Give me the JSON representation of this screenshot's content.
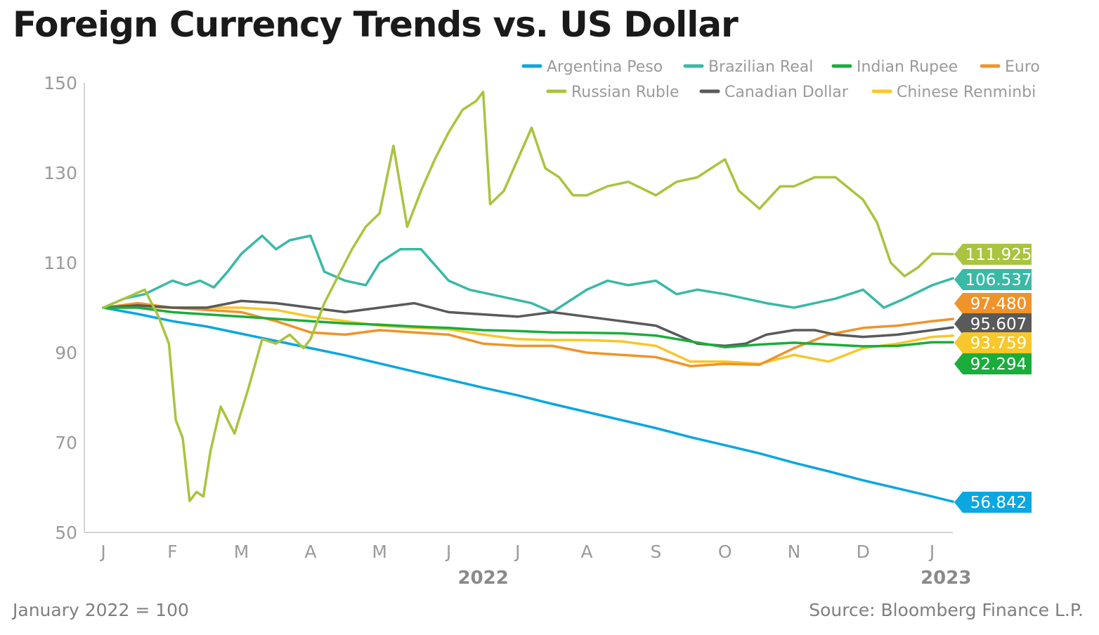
{
  "title": "Foreign Currency Trends vs. US Dollar",
  "footnote": "January 2022 = 100",
  "source": "Source: Bloomberg Finance L.P.",
  "chart_data": {
    "type": "line",
    "x_tick_labels": [
      "J",
      "F",
      "M",
      "A",
      "M",
      "J",
      "J",
      "A",
      "S",
      "O",
      "N",
      "D",
      "J"
    ],
    "x_year_labels": [
      "2022",
      "2023"
    ],
    "ylim": [
      50,
      150
    ],
    "y_ticks": [
      50,
      70,
      90,
      110,
      130,
      150
    ],
    "grid": false,
    "legend_position": "top-right",
    "x_unit": "months since January 2022",
    "series": [
      {
        "name": "Argentina Peso",
        "color": "#0aa7e0",
        "end_label": "56.842",
        "points": [
          [
            0,
            100
          ],
          [
            0.5,
            98.6
          ],
          [
            1,
            97
          ],
          [
            1.5,
            95.8
          ],
          [
            2,
            94.2
          ],
          [
            2.5,
            92.6
          ],
          [
            3,
            91
          ],
          [
            3.5,
            89.4
          ],
          [
            4,
            87.6
          ],
          [
            4.5,
            85.8
          ],
          [
            5,
            84
          ],
          [
            5.5,
            82.2
          ],
          [
            6,
            80.5
          ],
          [
            6.5,
            78.6
          ],
          [
            7,
            76.8
          ],
          [
            7.5,
            75
          ],
          [
            8,
            73.2
          ],
          [
            8.5,
            71.2
          ],
          [
            9,
            69.4
          ],
          [
            9.5,
            67.6
          ],
          [
            10,
            65.5
          ],
          [
            10.5,
            63.6
          ],
          [
            11,
            61.6
          ],
          [
            11.5,
            59.8
          ],
          [
            12,
            58
          ],
          [
            12.3,
            56.842
          ]
        ]
      },
      {
        "name": "Brazilian Real",
        "color": "#39b9a6",
        "end_label": "106.537",
        "points": [
          [
            0,
            100
          ],
          [
            0.3,
            102
          ],
          [
            0.6,
            103
          ],
          [
            0.8,
            104.5
          ],
          [
            1,
            106
          ],
          [
            1.2,
            105
          ],
          [
            1.4,
            106
          ],
          [
            1.6,
            104.5
          ],
          [
            1.8,
            108
          ],
          [
            2,
            112
          ],
          [
            2.3,
            116
          ],
          [
            2.5,
            113
          ],
          [
            2.7,
            115
          ],
          [
            3,
            116
          ],
          [
            3.2,
            108
          ],
          [
            3.5,
            106
          ],
          [
            3.8,
            105
          ],
          [
            4,
            110
          ],
          [
            4.3,
            113
          ],
          [
            4.6,
            113
          ],
          [
            5,
            106
          ],
          [
            5.3,
            104
          ],
          [
            5.6,
            103
          ],
          [
            5.9,
            102
          ],
          [
            6.2,
            101
          ],
          [
            6.5,
            99
          ],
          [
            7,
            104
          ],
          [
            7.3,
            106
          ],
          [
            7.6,
            105
          ],
          [
            8,
            106
          ],
          [
            8.3,
            103
          ],
          [
            8.6,
            104
          ],
          [
            9,
            103
          ],
          [
            9.3,
            102
          ],
          [
            9.6,
            101
          ],
          [
            10,
            100
          ],
          [
            10.3,
            101
          ],
          [
            10.6,
            102
          ],
          [
            11,
            104
          ],
          [
            11.3,
            100
          ],
          [
            11.6,
            102
          ],
          [
            12,
            105
          ],
          [
            12.3,
            106.537
          ]
        ]
      },
      {
        "name": "Indian Rupee",
        "color": "#1aad3c",
        "end_label": "92.294",
        "points": [
          [
            0,
            100
          ],
          [
            0.5,
            100
          ],
          [
            1,
            99
          ],
          [
            1.5,
            98.5
          ],
          [
            2,
            98
          ],
          [
            2.5,
            97.5
          ],
          [
            3,
            97
          ],
          [
            3.5,
            96.5
          ],
          [
            4,
            96.2
          ],
          [
            4.5,
            95.8
          ],
          [
            5,
            95.5
          ],
          [
            5.5,
            95
          ],
          [
            6,
            94.8
          ],
          [
            6.5,
            94.5
          ],
          [
            7,
            94.4
          ],
          [
            7.5,
            94.3
          ],
          [
            8,
            93.8
          ],
          [
            8.5,
            92.5
          ],
          [
            9,
            91.2
          ],
          [
            9.5,
            91.8
          ],
          [
            10,
            92.2
          ],
          [
            10.5,
            91.8
          ],
          [
            11,
            91.4
          ],
          [
            11.5,
            91.5
          ],
          [
            12,
            92.3
          ],
          [
            12.3,
            92.294
          ]
        ]
      },
      {
        "name": "Euro",
        "color": "#f0932a",
        "end_label": "97.480",
        "points": [
          [
            0,
            100
          ],
          [
            0.5,
            101
          ],
          [
            1,
            100
          ],
          [
            1.5,
            99.5
          ],
          [
            2,
            99
          ],
          [
            2.5,
            97
          ],
          [
            3,
            94.5
          ],
          [
            3.5,
            94
          ],
          [
            4,
            95
          ],
          [
            4.5,
            94.5
          ],
          [
            5,
            94
          ],
          [
            5.5,
            92
          ],
          [
            6,
            91.5
          ],
          [
            6.5,
            91.5
          ],
          [
            7,
            90
          ],
          [
            7.5,
            89.5
          ],
          [
            8,
            89
          ],
          [
            8.5,
            87
          ],
          [
            9,
            87.5
          ],
          [
            9.5,
            87.3
          ],
          [
            10,
            91
          ],
          [
            10.5,
            94
          ],
          [
            11,
            95.5
          ],
          [
            11.5,
            96
          ],
          [
            12,
            97
          ],
          [
            12.3,
            97.48
          ]
        ]
      },
      {
        "name": "Russian Ruble",
        "color": "#a9c43e",
        "end_label": "111.925",
        "points": [
          [
            0,
            100
          ],
          [
            0.3,
            102
          ],
          [
            0.6,
            104
          ],
          [
            0.8,
            98
          ],
          [
            0.95,
            92
          ],
          [
            1.05,
            75
          ],
          [
            1.15,
            71
          ],
          [
            1.25,
            57
          ],
          [
            1.35,
            59
          ],
          [
            1.45,
            58
          ],
          [
            1.55,
            68
          ],
          [
            1.7,
            78
          ],
          [
            1.9,
            72
          ],
          [
            2.1,
            82
          ],
          [
            2.3,
            93
          ],
          [
            2.5,
            92
          ],
          [
            2.7,
            94
          ],
          [
            2.9,
            91
          ],
          [
            3,
            93
          ],
          [
            3.2,
            101
          ],
          [
            3.4,
            107
          ],
          [
            3.6,
            113
          ],
          [
            3.8,
            118
          ],
          [
            4,
            121
          ],
          [
            4.2,
            136
          ],
          [
            4.4,
            118
          ],
          [
            4.6,
            126
          ],
          [
            4.8,
            133
          ],
          [
            5,
            139
          ],
          [
            5.2,
            144
          ],
          [
            5.4,
            146
          ],
          [
            5.5,
            148
          ],
          [
            5.6,
            123
          ],
          [
            5.8,
            126
          ],
          [
            6,
            133
          ],
          [
            6.2,
            140
          ],
          [
            6.4,
            131
          ],
          [
            6.6,
            129
          ],
          [
            6.8,
            125
          ],
          [
            7,
            125
          ],
          [
            7.3,
            127
          ],
          [
            7.6,
            128
          ],
          [
            8,
            125
          ],
          [
            8.3,
            128
          ],
          [
            8.6,
            129
          ],
          [
            9,
            133
          ],
          [
            9.2,
            126
          ],
          [
            9.5,
            122
          ],
          [
            9.8,
            127
          ],
          [
            10,
            127
          ],
          [
            10.3,
            129
          ],
          [
            10.6,
            129
          ],
          [
            11,
            124
          ],
          [
            11.2,
            119
          ],
          [
            11.4,
            110
          ],
          [
            11.6,
            107
          ],
          [
            11.8,
            109
          ],
          [
            12,
            112
          ],
          [
            12.3,
            111.925
          ]
        ]
      },
      {
        "name": "Canadian Dollar",
        "color": "#5a5a5a",
        "end_label": "95.607",
        "points": [
          [
            0,
            100
          ],
          [
            0.5,
            100.5
          ],
          [
            1,
            100
          ],
          [
            1.5,
            100
          ],
          [
            2,
            101.5
          ],
          [
            2.5,
            101
          ],
          [
            3,
            100
          ],
          [
            3.5,
            99
          ],
          [
            4,
            100
          ],
          [
            4.5,
            101
          ],
          [
            5,
            99
          ],
          [
            5.5,
            98.5
          ],
          [
            6,
            98
          ],
          [
            6.5,
            99
          ],
          [
            7,
            98
          ],
          [
            7.5,
            97
          ],
          [
            8,
            96
          ],
          [
            8.3,
            94
          ],
          [
            8.6,
            92
          ],
          [
            9,
            91.5
          ],
          [
            9.3,
            92
          ],
          [
            9.6,
            94
          ],
          [
            10,
            95
          ],
          [
            10.3,
            95
          ],
          [
            10.6,
            94
          ],
          [
            11,
            93.5
          ],
          [
            11.5,
            94
          ],
          [
            12,
            95
          ],
          [
            12.3,
            95.607
          ]
        ]
      },
      {
        "name": "Chinese Renminbi",
        "color": "#f7c72b",
        "end_label": "93.759",
        "points": [
          [
            0,
            100
          ],
          [
            0.5,
            100.2
          ],
          [
            1,
            100
          ],
          [
            1.5,
            100
          ],
          [
            2,
            100
          ],
          [
            2.5,
            99.5
          ],
          [
            3,
            98
          ],
          [
            3.5,
            97
          ],
          [
            4,
            96
          ],
          [
            4.5,
            95.5
          ],
          [
            5,
            95.2
          ],
          [
            5.5,
            94
          ],
          [
            6,
            93
          ],
          [
            6.5,
            92.8
          ],
          [
            7,
            92.8
          ],
          [
            7.5,
            92.5
          ],
          [
            8,
            91.5
          ],
          [
            8.5,
            88
          ],
          [
            9,
            88
          ],
          [
            9.5,
            87.5
          ],
          [
            10,
            89.5
          ],
          [
            10.5,
            88
          ],
          [
            11,
            91
          ],
          [
            11.5,
            92
          ],
          [
            12,
            93.5
          ],
          [
            12.3,
            93.759
          ]
        ]
      }
    ]
  }
}
